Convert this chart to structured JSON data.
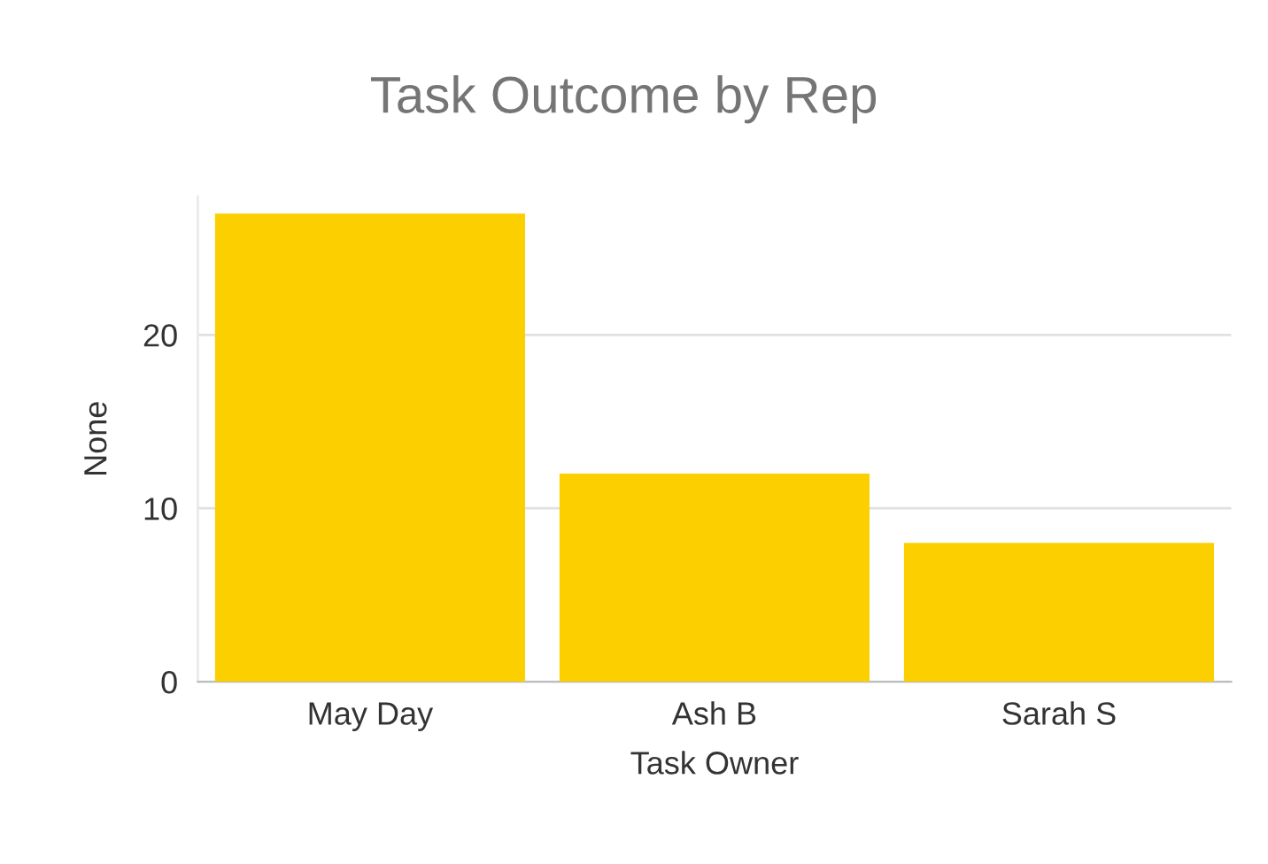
{
  "chart_data": {
    "type": "bar",
    "title": "Task Outcome by Rep",
    "xlabel": "Task Owner",
    "ylabel": "None",
    "categories": [
      "May Day",
      "Ash B",
      "Sarah S"
    ],
    "values": [
      27,
      12,
      8
    ],
    "color": "#fccf00",
    "ylim": [
      0,
      28
    ],
    "yticks": [
      0,
      10,
      20
    ],
    "grid": "y"
  }
}
